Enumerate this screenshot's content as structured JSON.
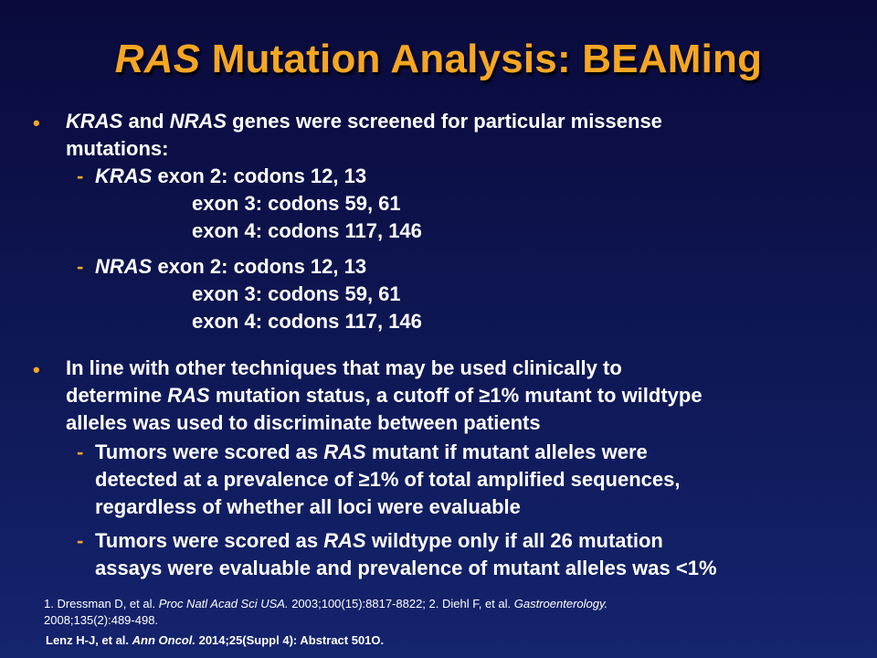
{
  "title": {
    "gene": "RAS",
    "rest": " Mutation Analysis: BEAMing"
  },
  "bullet1": {
    "line1": {
      "g1": "KRAS",
      "t1": " and ",
      "g2": "NRAS",
      "t2": " genes were screened for particular missense"
    },
    "line2": "mutations:",
    "kras": {
      "gene": "KRAS",
      "exon2": " exon 2: codons 12, 13",
      "exon3": "exon 3: codons 59, 61",
      "exon4": "exon 4: codons 117, 146"
    },
    "nras": {
      "gene": "NRAS",
      "exon2": " exon 2: codons 12, 13",
      "exon3": "exon 3: codons 59, 61",
      "exon4": "exon 4: codons 117, 146"
    }
  },
  "bullet2": {
    "line1": "In line with other techniques that may be used clinically to",
    "line2": {
      "t1": "determine ",
      "g": "RAS",
      "t2": " mutation status, a cutoff of ≥1% mutant to wildtype"
    },
    "line3": "alleles was used to discriminate between patients",
    "sub1": {
      "line1": {
        "t1": "Tumors were scored as ",
        "g": "RAS",
        "t2": " mutant if mutant alleles were"
      },
      "line2": "detected at a prevalence of ≥1% of total amplified sequences,",
      "line3": "regardless of whether all loci were evaluable"
    },
    "sub2": {
      "line1": {
        "t1": "Tumors were scored as ",
        "g": "RAS",
        "t2": " wildtype only if all 26 mutation"
      },
      "line2": "assays were evaluable and prevalence of mutant alleles was <1%"
    }
  },
  "bullet_symbol": "•",
  "dash_symbol": "-",
  "references": {
    "line1": {
      "t1": "1. Dressman D, et al. ",
      "j1": "Proc Natl Acad Sci USA.",
      "t2": " 2003;100(15):8817-8822; 2. Diehl F, et al. ",
      "j2": "Gastroenterology."
    },
    "line2": "2008;135(2):489-498.",
    "citation": {
      "t1": "Lenz H-J, et al. ",
      "j": "Ann Oncol.",
      "t2": " 2014;25(Suppl 4): Abstract 501O."
    }
  },
  "colors": {
    "accent": "#f5a623",
    "text": "#ffffff",
    "bg_top": "#0a0a3c",
    "bg_bottom": "#14246e"
  }
}
